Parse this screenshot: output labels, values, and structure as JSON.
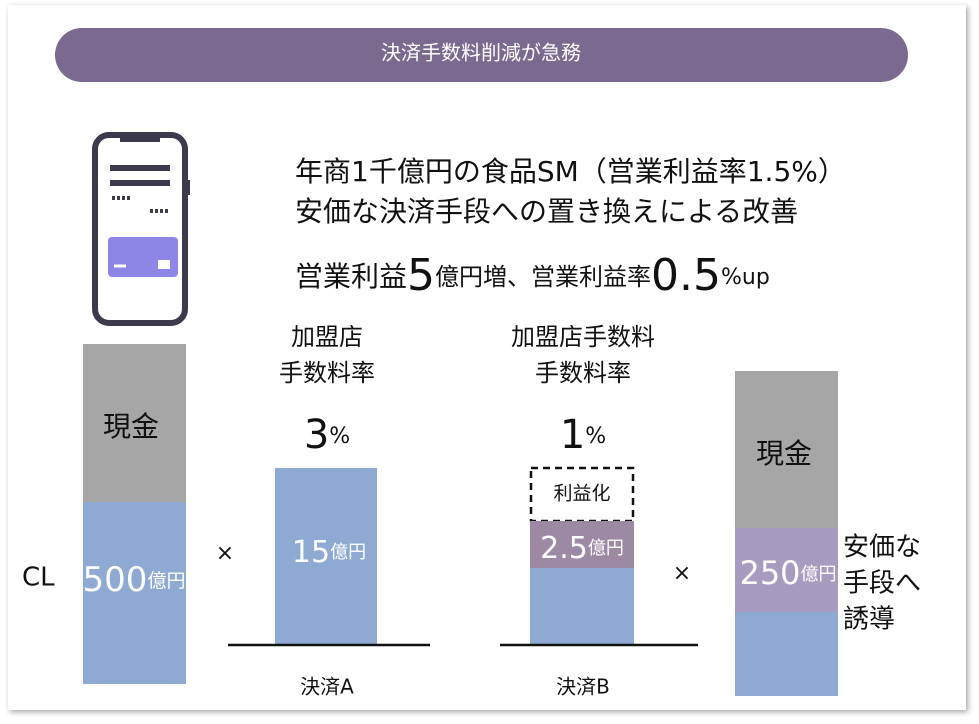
{
  "banner": "決済手数料削減が急務",
  "headline": {
    "line1": "年商1千億円の食品SM（営業利益率1.5%）",
    "line2": "安価な決済手段への置き換えによる改善",
    "line3": [
      "営業利益",
      5,
      "億円増、営業利益率",
      0.5,
      "%up"
    ]
  },
  "left_bar": {
    "upper": "現金",
    "lower_value": 500,
    "lower_unit": "億円",
    "side_label": "CL"
  },
  "operators": [
    "×",
    "×"
  ],
  "payment_a": {
    "heading": [
      "加盟店",
      "手数料率"
    ],
    "rate": 3,
    "rate_unit": "%",
    "bar_value": 15,
    "bar_unit": "億円",
    "label": "決済A"
  },
  "payment_b": {
    "heading": [
      "加盟店手数料",
      "手数料率"
    ],
    "rate": 1,
    "rate_unit": "%",
    "profit_label": "利益化",
    "bar_value": 2.5,
    "bar_unit": "億円",
    "label": "決済B"
  },
  "right_bar": {
    "upper": "現金",
    "middle_value": 250,
    "middle_unit": "億円",
    "side_label": [
      "安価な",
      "手段へ",
      "誘導"
    ]
  }
}
